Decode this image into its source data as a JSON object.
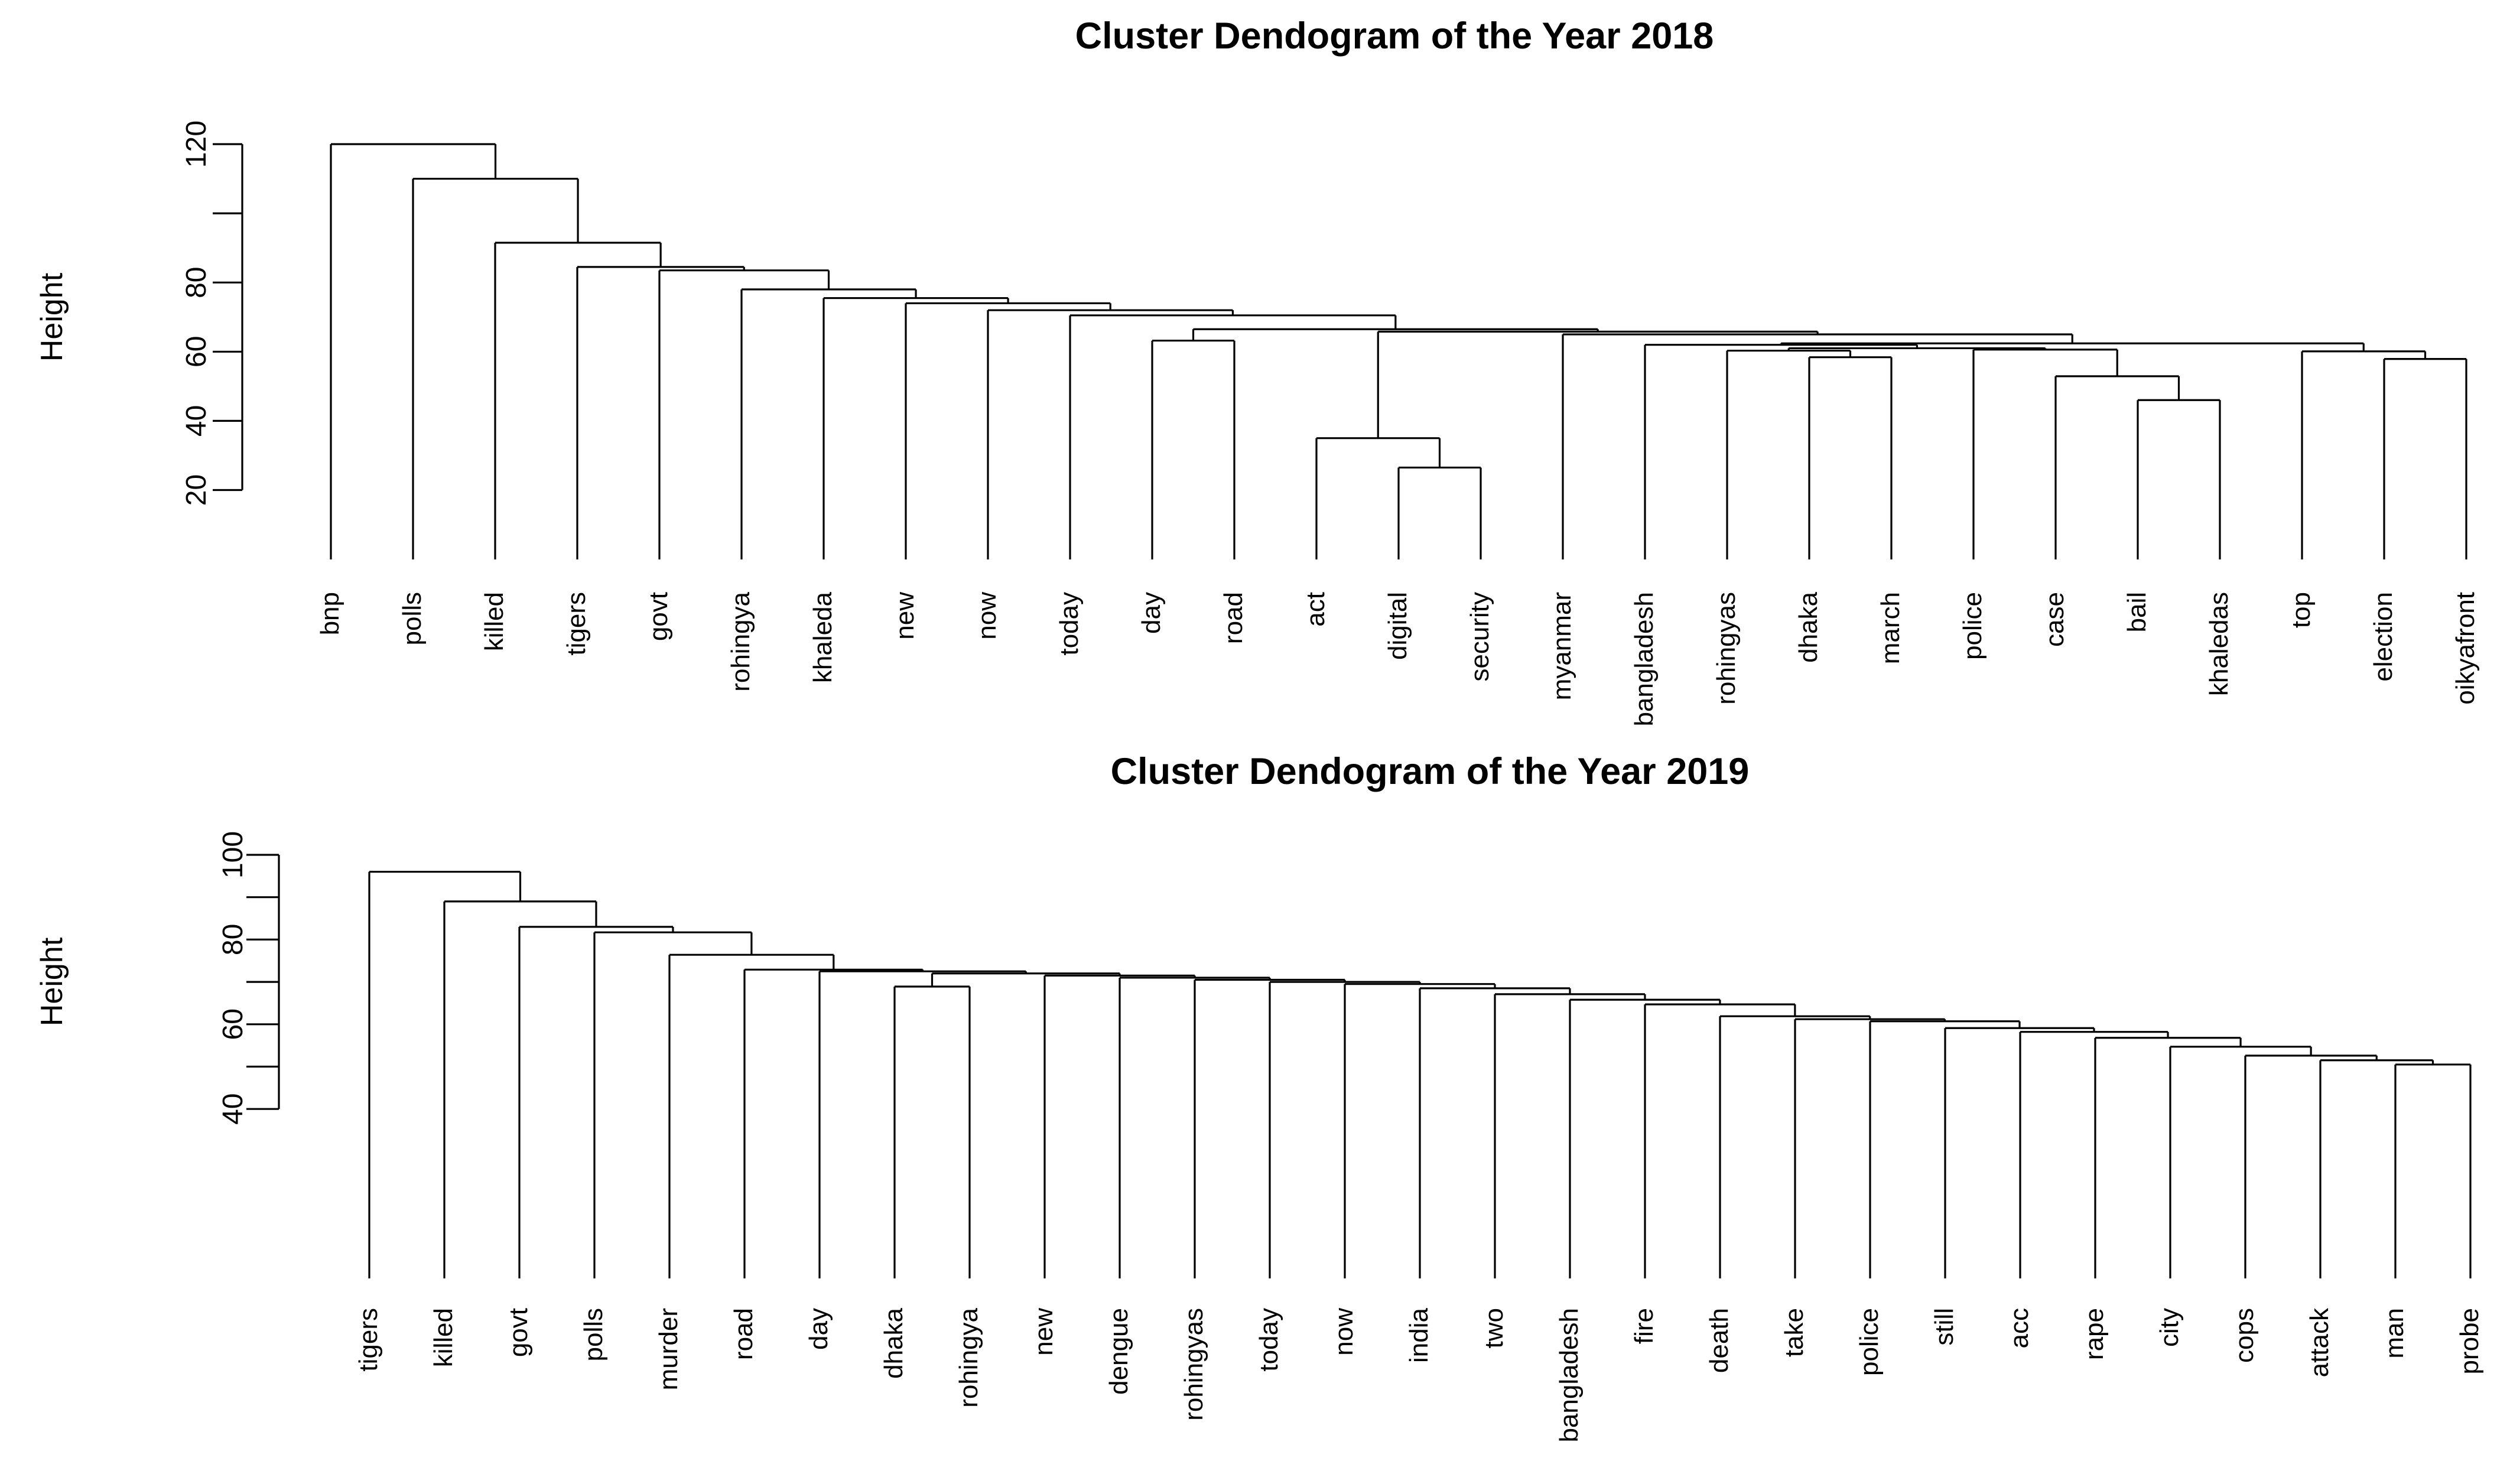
{
  "page": {
    "background_color": "#ffffff",
    "line_color": "#000000",
    "text_color": "#000000"
  },
  "chart_data": [
    {
      "type": "dendrogram",
      "title": "Cluster Dendogram of the Year 2018",
      "ylabel": "Height",
      "xlabel": "",
      "legend": "none",
      "grid": false,
      "y_axis": {
        "shown_range": [
          20,
          120
        ],
        "ticks": [
          {
            "value": 20,
            "label": "20"
          },
          {
            "value": 40,
            "label": "40"
          },
          {
            "value": 60,
            "label": "60"
          },
          {
            "value": 80,
            "label": "80"
          },
          {
            "value": 100,
            "label": ""
          },
          {
            "value": 120,
            "label": "120"
          }
        ],
        "leaf_baseline_value": 0
      },
      "leaves": [
        "bnp",
        "polls",
        "killed",
        "tigers",
        "govt",
        "rohingya",
        "khaleda",
        "new",
        "now",
        "today",
        "day",
        "road",
        "act",
        "digital",
        "security",
        "myanmar",
        "bangladesh",
        "rohingyas",
        "dhaka",
        "march",
        "police",
        "case",
        "bail",
        "khaledas",
        "top",
        "election",
        "oikyafront"
      ],
      "tree": [
        120,
        "bnp",
        [
          110,
          "polls",
          [
            91.5,
            "killed",
            [
              84.5,
              "tigers",
              [
                83.5,
                "govt",
                [
                  78,
                  "rohingya",
                  [
                    75.5,
                    "khaleda",
                    [
                      74,
                      "new",
                      [
                        72,
                        "now",
                        [
                          70.5,
                          "today",
                          [
                            66.5,
                            [
                              63.2,
                              "day",
                              "road"
                            ],
                            [
                              65.8,
                              [
                                35,
                                "act",
                                [
                                  26.5,
                                  "digital",
                                  "security"
                                ]
                              ],
                              [
                                65,
                                "myanmar",
                                [
                                  62.4,
                                  [
                                    62,
                                    "bangladesh",
                                    [
                                      61,
                                      [
                                        60.3,
                                        "rohingyas",
                                        [
                                          58.4,
                                          "dhaka",
                                          "march"
                                        ]
                                      ],
                                      [
                                        60.6,
                                        "police",
                                        [
                                          52.9,
                                          "case",
                                          [
                                            46,
                                            "bail",
                                            "khaledas"
                                          ]
                                        ]
                                      ]
                                    ]
                                  ],
                                  [
                                    60.1,
                                    "top",
                                    [
                                      57.9,
                                      "election",
                                      "oikyafront"
                                    ]
                                  ]
                                ]
                              ]
                            ]
                          ]
                        ]
                      ]
                    ]
                  ]
                ]
              ]
            ]
          ]
        ]
      ]
    },
    {
      "type": "dendrogram",
      "title": "Cluster Dendogram of the Year 2019",
      "ylabel": "Height",
      "xlabel": "",
      "legend": "none",
      "grid": false,
      "y_axis": {
        "shown_range": [
          40,
          100
        ],
        "ticks": [
          {
            "value": 40,
            "label": "40"
          },
          {
            "value": 50,
            "label": ""
          },
          {
            "value": 60,
            "label": "60"
          },
          {
            "value": 70,
            "label": ""
          },
          {
            "value": 80,
            "label": "80"
          },
          {
            "value": 90,
            "label": ""
          },
          {
            "value": 100,
            "label": "100"
          }
        ],
        "leaf_baseline_value": 0
      },
      "leaves": [
        "tigers",
        "killed",
        "govt",
        "polls",
        "murder",
        "road",
        "day",
        "dhaka",
        "rohingya",
        "new",
        "dengue",
        "rohingyas",
        "today",
        "now",
        "india",
        "two",
        "bangladesh",
        "fire",
        "death",
        "take",
        "police",
        "still",
        "acc",
        "rape",
        "city",
        "cops",
        "attack",
        "man",
        "probe"
      ],
      "tree": [
        96,
        "tigers",
        [
          89,
          "killed",
          [
            83,
            "govt",
            [
              81.7,
              "polls",
              [
                76.4,
                "murder",
                [
                  72.9,
                  "road",
                  [
                    72.5,
                    "day",
                    [
                      72,
                      [
                        68.9,
                        "dhaka",
                        "rohingya"
                      ],
                      [
                        71.5,
                        "new",
                        [
                          71,
                          "dengue",
                          [
                            70.5,
                            "rohingyas",
                            [
                              70,
                              "today",
                              [
                                69.5,
                                "now",
                                [
                                  68.5,
                                  "india",
                                  [
                                    67.1,
                                    "two",
                                    [
                                      65.8,
                                      "bangladesh",
                                      [
                                        64.7,
                                        "fire",
                                        [
                                          61.9,
                                          "death",
                                          [
                                            61.2,
                                            "take",
                                            [
                                              60.7,
                                              "police",
                                              [
                                                59.1,
                                                "still",
                                                [
                                                  58.2,
                                                  "acc",
                                                  [
                                                    56.8,
                                                    "rape",
                                                    [
                                                      54.7,
                                                      "city",
                                                      [
                                                        52.6,
                                                        "cops",
                                                        [
                                                          51.5,
                                                          "attack",
                                                          [
                                                            50.5,
                                                            "man",
                                                            "probe"
                                                          ]
                                                        ]
                                                      ]
                                                    ]
                                                  ]
                                                ]
                                              ]
                                            ]
                                          ]
                                        ]
                                      ]
                                    ]
                                  ]
                                ]
                              ]
                            ]
                          ]
                        ]
                      ]
                    ]
                  ]
                ]
              ]
            ]
          ]
        ]
      ]
    }
  ]
}
